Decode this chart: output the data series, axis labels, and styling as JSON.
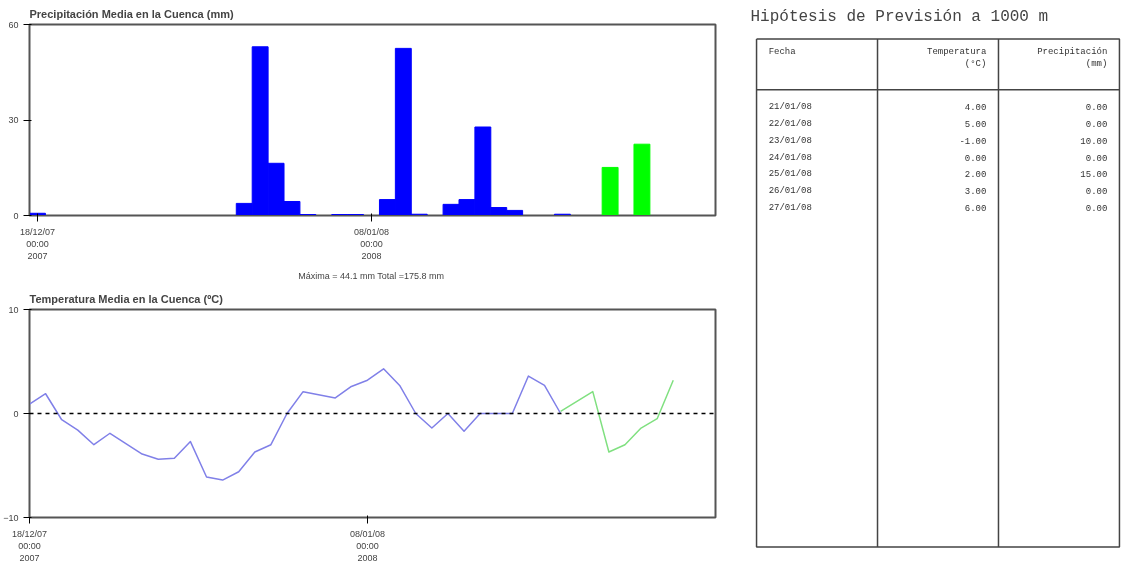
{
  "chart_data": [
    {
      "type": "bar",
      "title": "Precipitación Media en la Cuenca (mm)",
      "x": [
        "2007-12-18",
        "2007-12-31",
        "2008-01-01",
        "2008-01-02",
        "2008-01-03",
        "2008-01-04",
        "2008-01-06",
        "2008-01-07",
        "2008-01-09",
        "2008-01-10",
        "2008-01-11",
        "2008-01-13",
        "2008-01-14",
        "2008-01-15",
        "2008-01-16",
        "2008-01-17",
        "2008-01-20",
        "2008-01-23",
        "2008-01-25"
      ],
      "values": [
        0.7,
        3.8,
        53,
        16.4,
        4.4,
        0.3,
        0.3,
        0.3,
        5,
        52.5,
        0.4,
        3.5,
        5,
        27.8,
        2.5,
        1.6,
        0.4,
        15.1,
        22.4
      ],
      "xlim": [
        "2007-12-17T12:00",
        "2008-01-29T15:00"
      ],
      "colors": [
        "#0000ff",
        "#0000ff",
        "#0000ff",
        "#0000ff",
        "#0000ff",
        "#0000ff",
        "#0000ff",
        "#0000ff",
        "#0000ff",
        "#0000ff",
        "#0000ff",
        "#0000ff",
        "#0000ff",
        "#0000ff",
        "#0000ff",
        "#0000ff",
        "#0000ff",
        "#00ff00",
        "#00ff00"
      ],
      "xticks": [
        {
          "value": "2007-12-18",
          "label": "18/12/07\n00:00\n2007"
        },
        {
          "value": "2008-01-08",
          "label": "08/01/08\n00:00\n2008"
        }
      ],
      "ylim": [
        0,
        60
      ],
      "yticks": [
        0,
        30,
        60
      ],
      "grid": false,
      "annotations": [
        "Máxima = 44.1 mm  Total =175.8 mm"
      ]
    },
    {
      "type": "line",
      "title": "Temperatura Media en la Cuenca (ºC)",
      "series": [
        {
          "color": "#8080e8",
          "x": [
            "2007-12-18",
            "2007-12-19",
            "2007-12-20",
            "2007-12-21",
            "2007-12-22",
            "2007-12-23",
            "2007-12-25",
            "2007-12-26",
            "2007-12-27",
            "2007-12-28",
            "2007-12-29",
            "2007-12-30",
            "2007-12-31",
            "2008-01-01",
            "2008-01-02",
            "2008-01-03",
            "2008-01-04",
            "2008-01-06",
            "2008-01-07",
            "2008-01-08",
            "2008-01-09",
            "2008-01-10",
            "2008-01-11",
            "2008-01-12",
            "2008-01-13",
            "2008-01-14",
            "2008-01-15",
            "2008-01-17",
            "2008-01-18",
            "2008-01-19",
            "2008-01-20"
          ],
          "values": [
            0.9,
            1.9,
            -0.6,
            -1.6,
            -3.0,
            -1.9,
            -3.9,
            -4.4,
            -4.3,
            -2.7,
            -6.1,
            -6.4,
            -5.6,
            -3.7,
            -3.0,
            0,
            2.1,
            1.5,
            2.6,
            3.2,
            4.3,
            2.7,
            0,
            -1.4,
            0,
            -1.7,
            0,
            0,
            3.6,
            2.7,
            0
          ]
        },
        {
          "color": "#80e080",
          "x": [
            "2008-01-20",
            "2008-01-22",
            "2008-01-23",
            "2008-01-24",
            "2008-01-25",
            "2008-01-26",
            "2008-01-27"
          ],
          "values": [
            0.2,
            2.1,
            -3.7,
            -3.0,
            -1.4,
            -0.5,
            3.2
          ]
        }
      ],
      "xlim": [
        "2007-12-18",
        "2008-01-29T15:00"
      ],
      "xticks": [
        {
          "value": "2007-12-18",
          "label": "18/12/07\n00:00\n2007"
        },
        {
          "value": "2008-01-08",
          "label": "08/01/08\n00:00\n2008"
        }
      ],
      "ylim": [
        -10,
        10
      ],
      "yticks": [
        -10,
        0,
        10
      ],
      "grid": false,
      "marker": "none",
      "line_style": "solid",
      "ref_lines": [
        {
          "axis": "y",
          "value": 0,
          "color": "#000000",
          "line_style": "dashed"
        }
      ]
    },
    {
      "type": "other",
      "title": "Hipótesis de Previsión a 1000 m",
      "xlabel": "Fecha",
      "categories": [
        "21/01/08",
        "22/01/08",
        "23/01/08",
        "24/01/08",
        "25/01/08",
        "26/01/08",
        "27/01/08"
      ],
      "series": [
        {
          "name": "Temperatura (°C)",
          "values": [
            4,
            5,
            -1,
            0,
            2,
            3,
            6
          ],
          "value_labels": [
            "4.00",
            "5.00",
            "-1.00",
            "0.00",
            "2.00",
            "3.00",
            "6.00"
          ]
        },
        {
          "name": "Precipitación (mm)",
          "values": [
            0,
            0,
            10,
            0,
            15,
            0,
            0
          ],
          "value_labels": [
            "0.00",
            "0.00",
            "10.00",
            "0.00",
            "15.00",
            "0.00",
            "0.00"
          ]
        }
      ]
    }
  ]
}
